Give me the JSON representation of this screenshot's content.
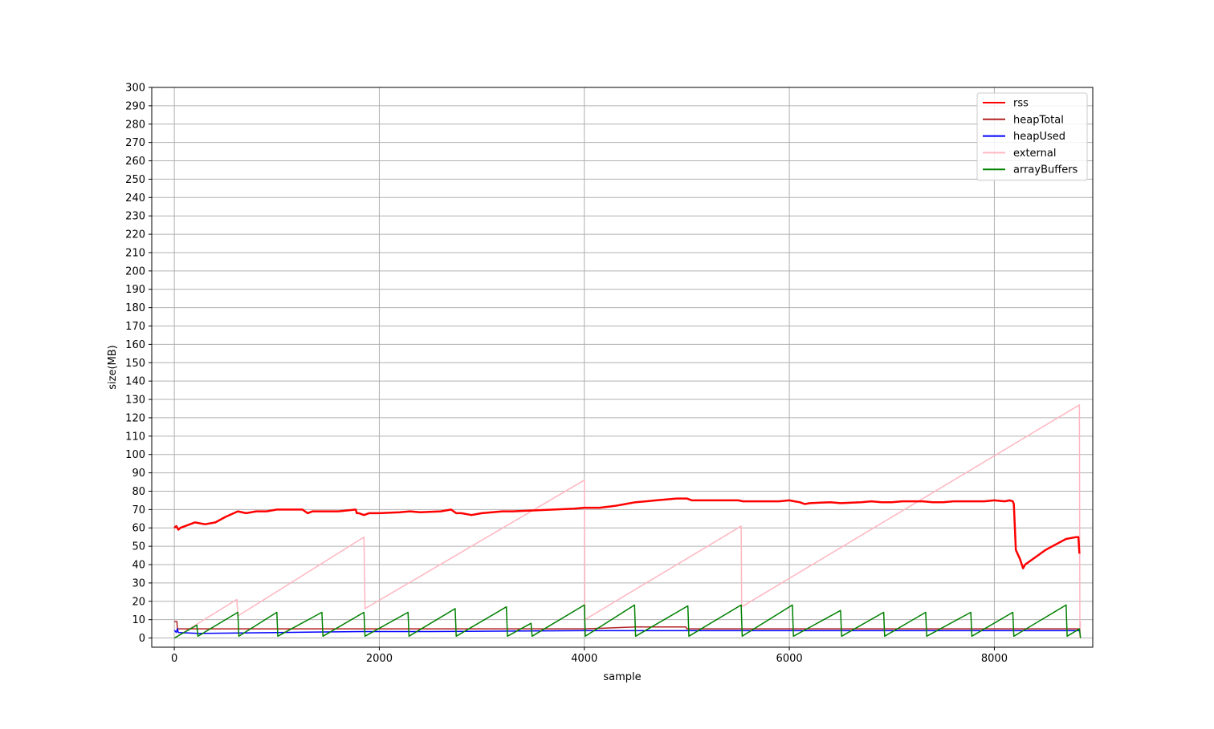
{
  "chart_data": {
    "type": "line",
    "title": "",
    "xlabel": "sample",
    "ylabel": "size(MB)",
    "xlim": [
      -220,
      8960
    ],
    "ylim": [
      -5,
      300
    ],
    "xticks": [
      0,
      2000,
      4000,
      6000,
      8000
    ],
    "xtick_labels": [
      "0",
      "2000",
      "4000",
      "6000",
      "8000"
    ],
    "yticks": [
      0,
      10,
      20,
      30,
      40,
      50,
      60,
      70,
      80,
      90,
      100,
      110,
      120,
      130,
      140,
      150,
      160,
      170,
      180,
      190,
      200,
      210,
      220,
      230,
      240,
      250,
      260,
      270,
      280,
      290,
      300
    ],
    "ytick_labels": [
      "0",
      "10",
      "20",
      "30",
      "40",
      "50",
      "60",
      "70",
      "80",
      "90",
      "100",
      "110",
      "120",
      "130",
      "140",
      "150",
      "160",
      "170",
      "180",
      "190",
      "200",
      "210",
      "220",
      "230",
      "240",
      "250",
      "260",
      "270",
      "280",
      "290",
      "300"
    ],
    "grid": true,
    "legend_position": "upper right",
    "series": [
      {
        "name": "rss",
        "color": "#ff0000",
        "width": 2.5,
        "x": [
          0,
          20,
          40,
          60,
          200,
          300,
          400,
          500,
          620,
          700,
          800,
          900,
          1000,
          1100,
          1250,
          1300,
          1350,
          1500,
          1600,
          1770,
          1780,
          1800,
          1850,
          1900,
          2000,
          2200,
          2300,
          2400,
          2600,
          2700,
          2750,
          2800,
          2900,
          3000,
          3100,
          3200,
          3300,
          3500,
          3700,
          3900,
          4000,
          4150,
          4300,
          4400,
          4500,
          4600,
          4700,
          4800,
          4900,
          5000,
          5050,
          5100,
          5200,
          5400,
          5500,
          5550,
          5700,
          5900,
          6000,
          6050,
          6100,
          6150,
          6200,
          6400,
          6500,
          6700,
          6800,
          6900,
          7000,
          7100,
          7200,
          7300,
          7400,
          7500,
          7600,
          7700,
          7800,
          7900,
          8000,
          8100,
          8150,
          8180,
          8190,
          8200,
          8210,
          8250,
          8280,
          8300,
          8400,
          8500,
          8600,
          8700,
          8800,
          8820,
          8830
        ],
        "values": [
          60,
          61,
          59,
          60,
          63,
          62,
          63,
          66,
          69,
          68,
          69,
          69,
          70,
          70,
          70,
          68,
          69,
          69,
          69,
          70,
          68,
          68,
          67,
          68,
          68,
          68.5,
          69,
          68.5,
          69,
          70,
          68,
          68,
          67,
          68,
          68.5,
          69,
          69,
          69.5,
          70,
          70.5,
          71,
          71,
          72,
          73,
          74,
          74.5,
          75,
          75.5,
          76,
          76,
          75,
          75,
          75,
          75,
          75,
          74.5,
          74.5,
          74.5,
          75,
          74.5,
          74,
          73,
          73.5,
          74,
          73.5,
          74,
          74.5,
          74,
          74,
          74.5,
          74.5,
          74.5,
          74,
          74,
          74.5,
          74.5,
          74.5,
          74.5,
          75,
          74.5,
          75,
          74.5,
          73,
          60,
          48,
          43,
          38,
          40,
          44,
          48,
          51,
          54,
          55,
          55,
          46
        ]
      },
      {
        "name": "heapTotal",
        "color": "#b22222",
        "width": 1.5,
        "x": [
          0,
          5,
          25,
          30,
          40,
          100,
          1000,
          2000,
          3000,
          4000,
          4500,
          4990,
          5000,
          6000,
          7000,
          8000,
          8830
        ],
        "values": [
          9,
          9,
          9,
          5,
          5,
          5,
          5,
          5,
          5,
          5,
          6,
          6,
          5,
          5,
          5,
          5,
          5
        ]
      },
      {
        "name": "heapUsed",
        "color": "#0000ff",
        "width": 1.5,
        "x": [
          0,
          5,
          20,
          30,
          40,
          230,
          1000,
          1840,
          1860,
          2500,
          3990,
          4000,
          5000,
          6000,
          6100,
          7000,
          7900,
          8000,
          8830
        ],
        "values": [
          4,
          4,
          3,
          5,
          3,
          2.5,
          3,
          3.5,
          3.5,
          3.5,
          4,
          4,
          4,
          4,
          4,
          4,
          4,
          4,
          4
        ]
      },
      {
        "name": "external",
        "color": "#ffb6c1",
        "width": 1.5,
        "x": [
          0,
          610,
          620,
          1850,
          1860,
          4000,
          4005,
          5530,
          5535,
          8830,
          8835,
          8840
        ],
        "values": [
          0,
          21,
          12,
          55,
          16,
          86,
          10,
          61,
          17,
          127,
          0,
          9
        ]
      },
      {
        "name": "arrayBuffers",
        "color": "#008000",
        "width": 1.5,
        "x": [
          0,
          220,
          230,
          620,
          630,
          1000,
          1010,
          1440,
          1450,
          1850,
          1860,
          2280,
          2290,
          2740,
          2750,
          3240,
          3250,
          3480,
          3490,
          4000,
          4010,
          4490,
          4500,
          5010,
          5020,
          5530,
          5540,
          6030,
          6040,
          6500,
          6510,
          6920,
          6930,
          7330,
          7340,
          7770,
          7780,
          8180,
          8190,
          8700,
          8710,
          8830,
          8840
        ],
        "values": [
          0,
          7,
          1,
          14,
          1,
          14,
          1,
          14,
          1,
          14,
          1,
          14,
          1,
          16,
          1,
          17,
          1,
          8,
          1,
          18,
          1,
          18,
          1,
          17.5,
          1,
          18,
          1,
          18,
          1,
          15,
          1,
          14,
          1,
          14,
          1,
          14,
          1,
          14,
          1,
          18,
          1,
          5,
          0
        ]
      }
    ]
  }
}
